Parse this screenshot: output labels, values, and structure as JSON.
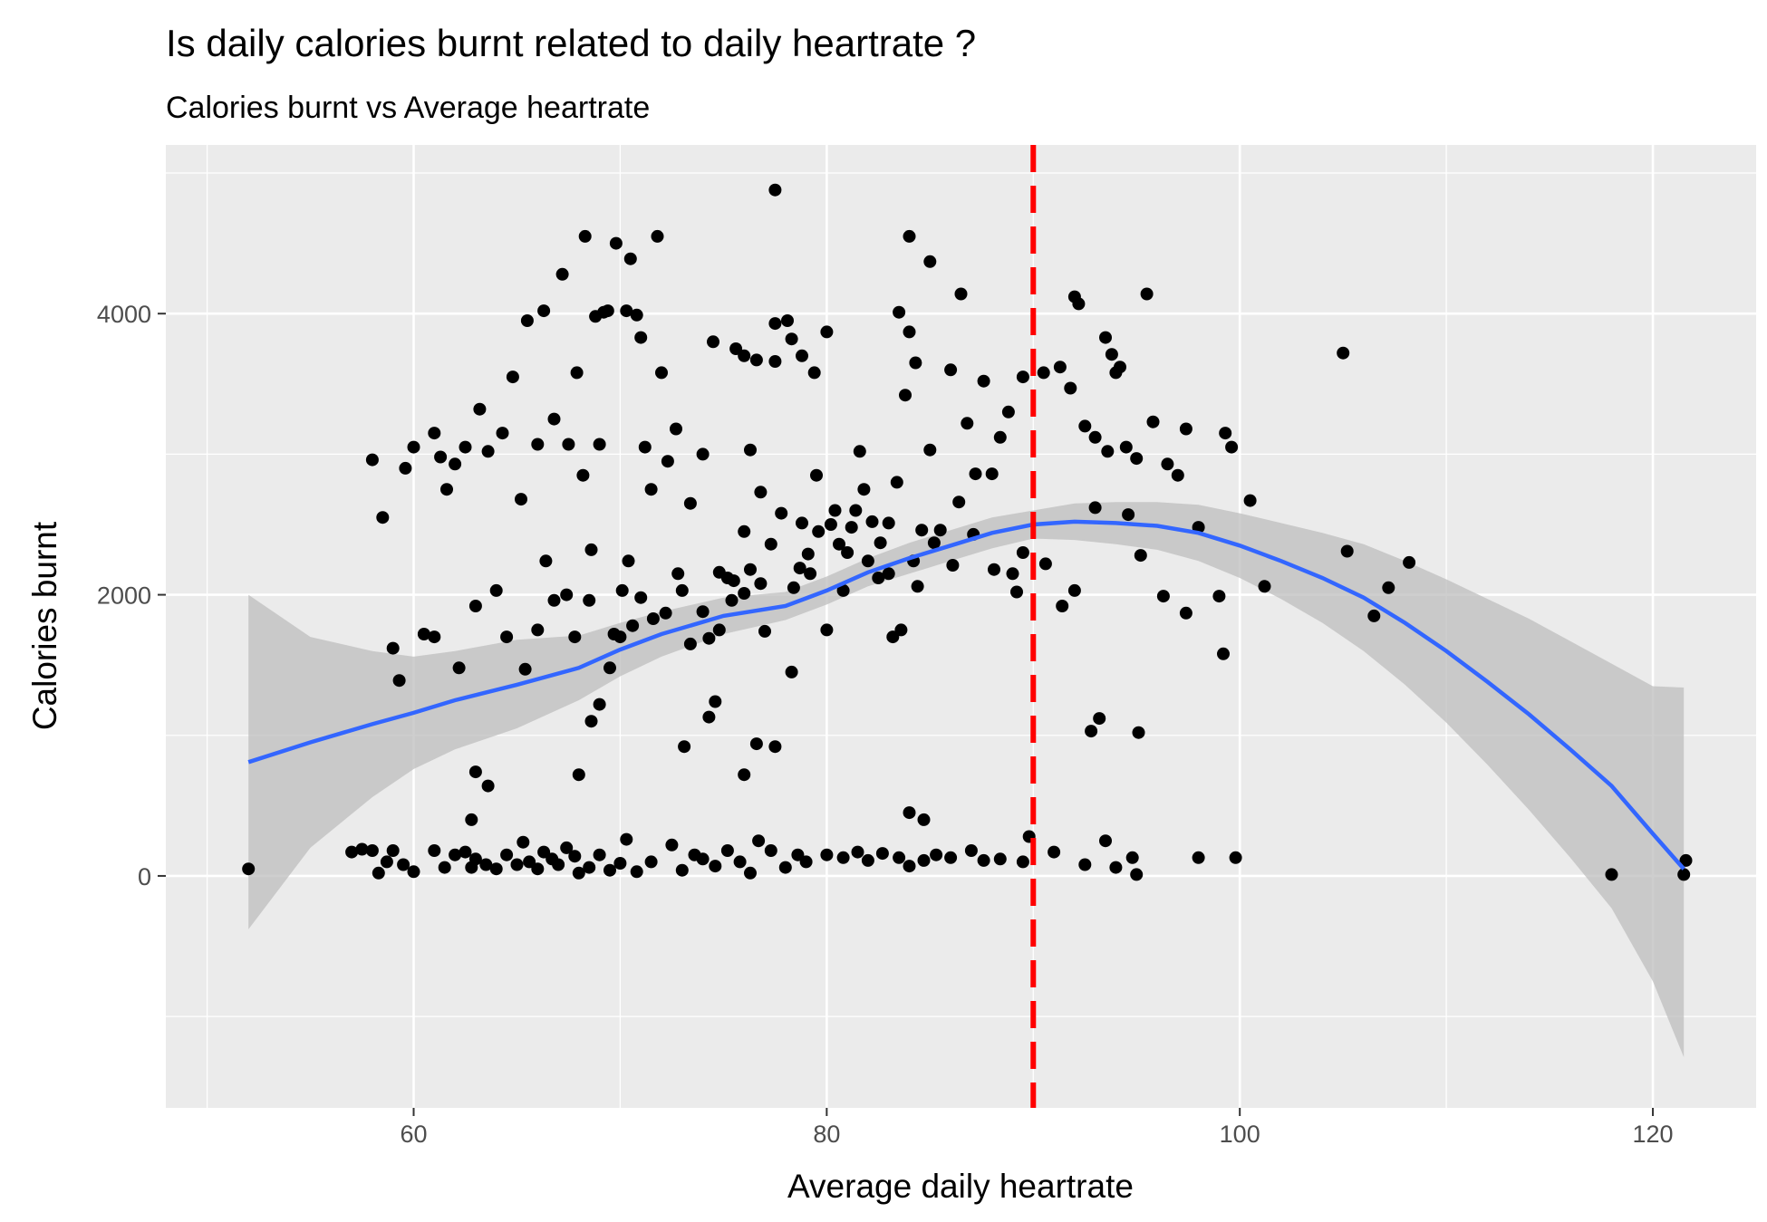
{
  "chart_data": {
    "type": "scatter",
    "title": "Is daily calories burnt related to daily heartrate ?",
    "subtitle": "Calories burnt vs Average heartrate",
    "xlabel": "Average daily heartrate",
    "ylabel": "Calories burnt",
    "xlim": [
      48,
      125
    ],
    "ylim": [
      -1650,
      5200
    ],
    "x_ticks": [
      60,
      80,
      100,
      120
    ],
    "y_ticks": [
      0,
      2000,
      4000
    ],
    "grid": true,
    "legend": "none",
    "vline": {
      "x": 90,
      "color": "#ff0000",
      "style": "dashed"
    },
    "smooth": {
      "color": "#3366ff",
      "band_color": "#bdbdbd",
      "x": [
        52,
        55,
        58,
        60,
        62,
        65,
        68,
        70,
        72,
        75,
        78,
        80,
        82,
        84,
        86,
        88,
        90,
        92,
        94,
        96,
        98,
        100,
        102,
        104,
        106,
        108,
        110,
        112,
        114,
        116,
        118,
        120,
        121.5
      ],
      "y": [
        810,
        950,
        1080,
        1160,
        1250,
        1360,
        1480,
        1610,
        1720,
        1850,
        1920,
        2030,
        2160,
        2260,
        2350,
        2440,
        2500,
        2520,
        2510,
        2490,
        2440,
        2350,
        2240,
        2120,
        1980,
        1800,
        1600,
        1380,
        1150,
        900,
        640,
        300,
        50
      ],
      "lower": [
        -380,
        200,
        560,
        760,
        900,
        1050,
        1250,
        1420,
        1560,
        1720,
        1820,
        1930,
        2060,
        2150,
        2240,
        2330,
        2400,
        2390,
        2360,
        2320,
        2240,
        2120,
        1970,
        1800,
        1600,
        1360,
        1090,
        790,
        470,
        130,
        -230,
        -750,
        -1290
      ],
      "upper": [
        2000,
        1700,
        1600,
        1560,
        1600,
        1680,
        1710,
        1800,
        1880,
        1980,
        2020,
        2130,
        2260,
        2370,
        2460,
        2550,
        2600,
        2650,
        2660,
        2660,
        2640,
        2580,
        2510,
        2440,
        2360,
        2240,
        2110,
        1970,
        1830,
        1670,
        1510,
        1350,
        1340
      ]
    },
    "points": [
      [
        52,
        50
      ],
      [
        57,
        170
      ],
      [
        57.5,
        190
      ],
      [
        58,
        180
      ],
      [
        58.3,
        20
      ],
      [
        58.7,
        100
      ],
      [
        59,
        180
      ],
      [
        59.5,
        80
      ],
      [
        60,
        30
      ],
      [
        61,
        180
      ],
      [
        61.5,
        60
      ],
      [
        62,
        150
      ],
      [
        62.5,
        170
      ],
      [
        62.8,
        60
      ],
      [
        63,
        120
      ],
      [
        63.5,
        80
      ],
      [
        64,
        50
      ],
      [
        64.5,
        150
      ],
      [
        65,
        80
      ],
      [
        65.3,
        240
      ],
      [
        65.6,
        100
      ],
      [
        66,
        50
      ],
      [
        66.3,
        170
      ],
      [
        66.7,
        120
      ],
      [
        67,
        80
      ],
      [
        67.4,
        200
      ],
      [
        67.8,
        140
      ],
      [
        68,
        20
      ],
      [
        68.5,
        60
      ],
      [
        69,
        150
      ],
      [
        69.5,
        40
      ],
      [
        70,
        90
      ],
      [
        70.3,
        260
      ],
      [
        70.8,
        30
      ],
      [
        71.5,
        100
      ],
      [
        72.5,
        220
      ],
      [
        73,
        40
      ],
      [
        73.6,
        150
      ],
      [
        74,
        120
      ],
      [
        74.6,
        70
      ],
      [
        75.2,
        180
      ],
      [
        75.8,
        100
      ],
      [
        76.3,
        20
      ],
      [
        76.7,
        250
      ],
      [
        77.3,
        180
      ],
      [
        78,
        60
      ],
      [
        78.6,
        150
      ],
      [
        79,
        100
      ],
      [
        80,
        150
      ],
      [
        80.8,
        130
      ],
      [
        81.5,
        170
      ],
      [
        82,
        110
      ],
      [
        82.7,
        160
      ],
      [
        83.5,
        130
      ],
      [
        84,
        70
      ],
      [
        84.7,
        110
      ],
      [
        85.3,
        150
      ],
      [
        86,
        130
      ],
      [
        87,
        180
      ],
      [
        87.6,
        110
      ],
      [
        88.4,
        120
      ],
      [
        89.5,
        100
      ],
      [
        89.8,
        280
      ],
      [
        91,
        170
      ],
      [
        92.5,
        80
      ],
      [
        93.5,
        250
      ],
      [
        94,
        60
      ],
      [
        94.8,
        130
      ],
      [
        95,
        10
      ],
      [
        98,
        130
      ],
      [
        99.8,
        130
      ],
      [
        118,
        10
      ],
      [
        121.5,
        10
      ],
      [
        121.6,
        110
      ],
      [
        58,
        2960
      ],
      [
        58.5,
        2550
      ],
      [
        59,
        1620
      ],
      [
        59.3,
        1390
      ],
      [
        59.6,
        2900
      ],
      [
        60,
        3050
      ],
      [
        61,
        3150
      ],
      [
        61.3,
        2980
      ],
      [
        61.6,
        2750
      ],
      [
        62,
        2930
      ],
      [
        62.5,
        3050
      ],
      [
        63.2,
        3320
      ],
      [
        63.6,
        3020
      ],
      [
        64,
        2030
      ],
      [
        64.3,
        3150
      ],
      [
        64.8,
        3550
      ],
      [
        65.2,
        2680
      ],
      [
        65.5,
        3950
      ],
      [
        66,
        3070
      ],
      [
        66.4,
        2240
      ],
      [
        66.8,
        3250
      ],
      [
        67.2,
        4280
      ],
      [
        67.5,
        3070
      ],
      [
        67.9,
        3580
      ],
      [
        68.2,
        2850
      ],
      [
        68.6,
        2320
      ],
      [
        69,
        3070
      ],
      [
        69.4,
        4020
      ],
      [
        69.7,
        1720
      ],
      [
        70.1,
        2030
      ],
      [
        70.4,
        2240
      ],
      [
        70.8,
        3990
      ],
      [
        71.2,
        3050
      ],
      [
        71.5,
        2750
      ],
      [
        72,
        3580
      ],
      [
        72.3,
        2950
      ],
      [
        72.7,
        3180
      ],
      [
        73,
        2030
      ],
      [
        73.4,
        2650
      ],
      [
        74,
        3000
      ],
      [
        74.3,
        1690
      ],
      [
        74.8,
        1750
      ],
      [
        75.2,
        2120
      ],
      [
        75.5,
        2100
      ],
      [
        76,
        2010
      ],
      [
        76.3,
        3030
      ],
      [
        76.8,
        2730
      ],
      [
        77,
        1740
      ],
      [
        77.5,
        3660
      ],
      [
        78.3,
        3820
      ],
      [
        78.7,
        2190
      ],
      [
        79.1,
        2290
      ],
      [
        79.5,
        2850
      ],
      [
        80,
        1750
      ],
      [
        80.4,
        2600
      ],
      [
        80.8,
        2030
      ],
      [
        81.2,
        2480
      ],
      [
        81.6,
        3020
      ],
      [
        82,
        2240
      ],
      [
        82.5,
        2120
      ],
      [
        83,
        2510
      ],
      [
        83.4,
        2800
      ],
      [
        83.8,
        3420
      ],
      [
        84.2,
        2240
      ],
      [
        84.6,
        2460
      ],
      [
        85,
        3030
      ],
      [
        85.5,
        2460
      ],
      [
        86,
        3600
      ],
      [
        86.4,
        2660
      ],
      [
        86.8,
        3220
      ],
      [
        87.2,
        2860
      ],
      [
        87.6,
        3520
      ],
      [
        88,
        2860
      ],
      [
        88.4,
        3120
      ],
      [
        88.8,
        3300
      ],
      [
        89.2,
        2020
      ],
      [
        68.3,
        4550
      ],
      [
        69.8,
        4500
      ],
      [
        70.5,
        4390
      ],
      [
        71.8,
        4550
      ],
      [
        66.3,
        4020
      ],
      [
        68.8,
        3980
      ],
      [
        69.2,
        4010
      ],
      [
        70.3,
        4020
      ],
      [
        71,
        3830
      ],
      [
        74.5,
        3800
      ],
      [
        75.6,
        3750
      ],
      [
        76,
        3700
      ],
      [
        76.6,
        3670
      ],
      [
        77.5,
        3930
      ],
      [
        78.1,
        3950
      ],
      [
        78.8,
        3700
      ],
      [
        79.4,
        3580
      ],
      [
        80,
        3870
      ],
      [
        83.5,
        4010
      ],
      [
        84,
        3870
      ],
      [
        84.3,
        3650
      ],
      [
        85,
        4370
      ],
      [
        86.5,
        4140
      ],
      [
        84,
        4550
      ],
      [
        77.5,
        4880
      ],
      [
        92,
        4120
      ],
      [
        92.2,
        4070
      ],
      [
        93.5,
        3830
      ],
      [
        93.8,
        3710
      ],
      [
        94.2,
        3620
      ],
      [
        95.5,
        4140
      ],
      [
        105,
        3720
      ],
      [
        89.5,
        3550
      ],
      [
        90.5,
        3580
      ],
      [
        91.3,
        3620
      ],
      [
        91.8,
        3470
      ],
      [
        92.5,
        3200
      ],
      [
        93,
        3120
      ],
      [
        93.6,
        3020
      ],
      [
        94,
        3580
      ],
      [
        94.5,
        3050
      ],
      [
        95,
        2970
      ],
      [
        95.8,
        3230
      ],
      [
        96.5,
        2930
      ],
      [
        97,
        2850
      ],
      [
        97.4,
        3180
      ],
      [
        98,
        2480
      ],
      [
        99.3,
        3150
      ],
      [
        99.6,
        3050
      ],
      [
        100.5,
        2670
      ],
      [
        90.6,
        2220
      ],
      [
        91.4,
        1920
      ],
      [
        92,
        2030
      ],
      [
        93,
        2620
      ],
      [
        94.6,
        2570
      ],
      [
        95.2,
        2280
      ],
      [
        96.3,
        1990
      ],
      [
        97.4,
        1870
      ],
      [
        99,
        1990
      ],
      [
        99.2,
        1580
      ],
      [
        101.2,
        2060
      ],
      [
        105.2,
        2310
      ],
      [
        106.5,
        1850
      ],
      [
        107.2,
        2050
      ],
      [
        108.2,
        2230
      ],
      [
        73.1,
        920
      ],
      [
        74.3,
        1130
      ],
      [
        74.6,
        1240
      ],
      [
        76,
        720
      ],
      [
        76.6,
        940
      ],
      [
        77.5,
        920
      ],
      [
        78.3,
        1450
      ],
      [
        68,
        720
      ],
      [
        68.6,
        1100
      ],
      [
        69,
        1220
      ],
      [
        63,
        740
      ],
      [
        63.6,
        640
      ],
      [
        62.8,
        400
      ],
      [
        84,
        450
      ],
      [
        84.7,
        400
      ],
      [
        92.8,
        1030
      ],
      [
        93.2,
        1120
      ],
      [
        95.1,
        1020
      ],
      [
        60.5,
        1720
      ],
      [
        61,
        1700
      ],
      [
        62.2,
        1480
      ],
      [
        63,
        1920
      ],
      [
        64.5,
        1700
      ],
      [
        65.4,
        1470
      ],
      [
        66,
        1750
      ],
      [
        66.8,
        1960
      ],
      [
        67.4,
        2000
      ],
      [
        67.8,
        1700
      ],
      [
        68.5,
        1960
      ],
      [
        69.5,
        1480
      ],
      [
        70,
        1700
      ],
      [
        70.6,
        1780
      ],
      [
        71,
        1980
      ],
      [
        71.6,
        1830
      ],
      [
        72.2,
        1870
      ],
      [
        72.8,
        2150
      ],
      [
        73.4,
        1650
      ],
      [
        74,
        1880
      ],
      [
        74.8,
        2160
      ],
      [
        75.4,
        1960
      ],
      [
        76,
        2450
      ],
      [
        76.3,
        2180
      ],
      [
        76.8,
        2080
      ],
      [
        77.3,
        2360
      ],
      [
        77.8,
        2580
      ],
      [
        78.4,
        2050
      ],
      [
        78.8,
        2510
      ],
      [
        79.2,
        2150
      ],
      [
        79.6,
        2450
      ],
      [
        80.2,
        2500
      ],
      [
        80.6,
        2360
      ],
      [
        81,
        2300
      ],
      [
        81.4,
        2600
      ],
      [
        81.8,
        2750
      ],
      [
        82.2,
        2520
      ],
      [
        82.6,
        2370
      ],
      [
        83,
        2150
      ],
      [
        83.2,
        1700
      ],
      [
        83.6,
        1750
      ],
      [
        84.4,
        2060
      ],
      [
        85.2,
        2370
      ],
      [
        86.1,
        2210
      ],
      [
        87.1,
        2430
      ],
      [
        88.1,
        2180
      ],
      [
        89,
        2150
      ],
      [
        89.5,
        2300
      ]
    ]
  }
}
